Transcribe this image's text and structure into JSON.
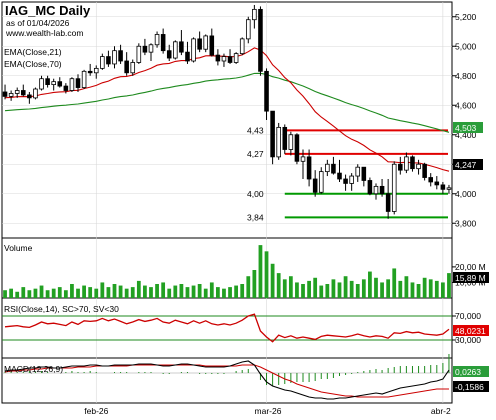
{
  "chart_data": {
    "type": "candlestick",
    "title": "IAG_MC Daily",
    "subtitle": "as of 01/04/2026",
    "source": "www.wealth-lab.com",
    "x_labels": [
      "feb-26",
      "mar-26",
      "abr-2"
    ],
    "price_panel": {
      "ylim": [
        3700,
        5300
      ],
      "yticks": [
        "5,200",
        "5,000",
        "4,800",
        "4,600",
        "4,400",
        "4,200",
        "4,000",
        "3,800"
      ],
      "indicators": [
        "EMA(Close,21)",
        "EMA(Close,70)"
      ],
      "ema21_last": "4,247",
      "ema70_last": "4,503",
      "levels": [
        {
          "label": "4,43",
          "value": 4430,
          "color": "#e00000"
        },
        {
          "label": "4,27",
          "value": 4270,
          "color": "#e00000"
        },
        {
          "label": "4,00",
          "value": 4000,
          "color": "#009900"
        },
        {
          "label": "3,84",
          "value": 3840,
          "color": "#009900"
        }
      ],
      "candles": [
        [
          4690,
          4740,
          4640,
          4660
        ],
        [
          4660,
          4700,
          4630,
          4680
        ],
        [
          4680,
          4720,
          4650,
          4700
        ],
        [
          4700,
          4740,
          4660,
          4670
        ],
        [
          4670,
          4690,
          4610,
          4650
        ],
        [
          4650,
          4720,
          4640,
          4710
        ],
        [
          4710,
          4800,
          4700,
          4780
        ],
        [
          4780,
          4800,
          4720,
          4740
        ],
        [
          4740,
          4780,
          4700,
          4760
        ],
        [
          4760,
          4790,
          4720,
          4730
        ],
        [
          4730,
          4750,
          4680,
          4700
        ],
        [
          4700,
          4790,
          4690,
          4780
        ],
        [
          4780,
          4810,
          4690,
          4720
        ],
        [
          4720,
          4840,
          4710,
          4830
        ],
        [
          4830,
          4880,
          4800,
          4820
        ],
        [
          4820,
          4870,
          4780,
          4850
        ],
        [
          4850,
          4950,
          4840,
          4930
        ],
        [
          4930,
          4970,
          4860,
          4880
        ],
        [
          4880,
          5000,
          4850,
          4970
        ],
        [
          4970,
          5010,
          4880,
          4900
        ],
        [
          4900,
          4960,
          4800,
          4820
        ],
        [
          4820,
          4910,
          4800,
          4890
        ],
        [
          4890,
          5020,
          4880,
          5000
        ],
        [
          5000,
          5050,
          4940,
          4960
        ],
        [
          4960,
          5020,
          4900,
          5010
        ],
        [
          5010,
          5100,
          4990,
          5080
        ],
        [
          5080,
          5120,
          4950,
          4970
        ],
        [
          4970,
          5010,
          4900,
          4920
        ],
        [
          4920,
          5040,
          4910,
          5030
        ],
        [
          5030,
          5110,
          4940,
          4960
        ],
        [
          4960,
          5030,
          4880,
          4900
        ],
        [
          4900,
          5060,
          4890,
          5050
        ],
        [
          5050,
          5100,
          4960,
          4980
        ],
        [
          4980,
          5080,
          4960,
          5070
        ],
        [
          5070,
          5120,
          4930,
          4940
        ],
        [
          4940,
          4980,
          4870,
          4900
        ],
        [
          4900,
          4950,
          4860,
          4930
        ],
        [
          4930,
          4980,
          4880,
          4890
        ],
        [
          4890,
          4960,
          4880,
          4950
        ],
        [
          4950,
          5060,
          4940,
          5050
        ],
        [
          5050,
          5200,
          5020,
          5180
        ],
        [
          5180,
          5280,
          5120,
          5250
        ],
        [
          5250,
          5270,
          4800,
          4830
        ],
        [
          4830,
          4850,
          4500,
          4560
        ],
        [
          4560,
          4560,
          4200,
          4250
        ],
        [
          4250,
          4480,
          4230,
          4450
        ],
        [
          4450,
          4470,
          4270,
          4300
        ],
        [
          4300,
          4420,
          4260,
          4400
        ],
        [
          4400,
          4410,
          4200,
          4220
        ],
        [
          4220,
          4300,
          4100,
          4250
        ],
        [
          4250,
          4300,
          4050,
          4100
        ],
        [
          4100,
          4160,
          3980,
          4010
        ],
        [
          4010,
          4180,
          4000,
          4150
        ],
        [
          4150,
          4230,
          4120,
          4200
        ],
        [
          4200,
          4250,
          4130,
          4140
        ],
        [
          4140,
          4230,
          4080,
          4100
        ],
        [
          4100,
          4130,
          4020,
          4070
        ],
        [
          4070,
          4140,
          4020,
          4120
        ],
        [
          4120,
          4200,
          4080,
          4180
        ],
        [
          4180,
          4180,
          4050,
          4090
        ],
        [
          4090,
          4110,
          3990,
          4000
        ],
        [
          4000,
          4070,
          3960,
          4050
        ],
        [
          4050,
          4100,
          3980,
          4000
        ],
        [
          4000,
          4100,
          3830,
          3880
        ],
        [
          3880,
          4220,
          3860,
          4200
        ],
        [
          4200,
          4250,
          4130,
          4160
        ],
        [
          4160,
          4280,
          4140,
          4250
        ],
        [
          4250,
          4260,
          4150,
          4170
        ],
        [
          4170,
          4230,
          4130,
          4200
        ],
        [
          4200,
          4210,
          4090,
          4110
        ],
        [
          4110,
          4140,
          4050,
          4080
        ],
        [
          4080,
          4120,
          4030,
          4060
        ],
        [
          4060,
          4080,
          4000,
          4030
        ],
        [
          4030,
          4060,
          4000,
          4040
        ]
      ]
    },
    "volume_panel": {
      "label": "Volume",
      "yticks": [
        "20,00 M",
        "10,00 M"
      ],
      "last": "15,89 M",
      "values": [
        5,
        6,
        4,
        7,
        5,
        6,
        8,
        5,
        6,
        7,
        5,
        9,
        6,
        8,
        7,
        6,
        10,
        7,
        9,
        8,
        6,
        7,
        11,
        8,
        7,
        9,
        10,
        6,
        8,
        9,
        7,
        8,
        9,
        6,
        10,
        7,
        6,
        7,
        8,
        9,
        14,
        18,
        34,
        30,
        22,
        16,
        12,
        14,
        10,
        9,
        11,
        13,
        8,
        9,
        12,
        10,
        14,
        11,
        9,
        12,
        17,
        13,
        10,
        12,
        19,
        11,
        14,
        10,
        9,
        13,
        12,
        11,
        10,
        16
      ]
    },
    "rsi_panel": {
      "label": "RSI(Close,14), SC>70, SV<30",
      "yticks": [
        "70,000",
        "30,000"
      ],
      "last": "48,0231",
      "ylim": [
        0,
        100
      ],
      "values": [
        52,
        53,
        54,
        52,
        51,
        55,
        60,
        57,
        58,
        56,
        54,
        60,
        56,
        62,
        61,
        62,
        66,
        62,
        65,
        61,
        57,
        60,
        64,
        61,
        63,
        66,
        60,
        58,
        63,
        60,
        57,
        62,
        58,
        62,
        57,
        55,
        57,
        55,
        58,
        63,
        70,
        73,
        45,
        35,
        27,
        38,
        34,
        37,
        33,
        35,
        33,
        31,
        36,
        38,
        37,
        36,
        35,
        37,
        40,
        37,
        35,
        37,
        36,
        33,
        42,
        41,
        44,
        42,
        43,
        40,
        39,
        38,
        40,
        48
      ]
    },
    "macd_panel": {
      "label": "MACD(12,26,9)",
      "last_macd": "0,0263",
      "last_signal": "-0,1586",
      "values_macd": [
        0.02,
        0.03,
        0.03,
        0.04,
        0.05,
        0.05,
        0.06,
        0.06,
        0.05,
        0.05,
        0.06,
        0.07,
        0.07,
        0.07,
        0.08,
        0.08,
        0.07,
        0.07,
        0.08,
        0.08,
        0.08,
        0.08,
        0.09,
        0.09,
        0.09,
        0.08,
        0.07,
        0.07,
        0.08,
        0.09,
        0.09,
        0.08,
        0.07,
        0.06,
        0.06,
        0.06,
        0.06,
        0.07,
        0.09,
        0.11,
        0.12,
        0.08,
        -0.01,
        -0.09,
        -0.13,
        -0.15,
        -0.17,
        -0.18,
        -0.2,
        -0.22,
        -0.24,
        -0.25,
        -0.25,
        -0.26,
        -0.26,
        -0.25,
        -0.25,
        -0.24,
        -0.23,
        -0.22,
        -0.21,
        -0.2,
        -0.21,
        -0.19,
        -0.17,
        -0.15,
        -0.14,
        -0.13,
        -0.12,
        -0.11,
        -0.09,
        -0.08,
        -0.06,
        0.03
      ],
      "values_signal": [
        0.01,
        0.02,
        0.02,
        0.03,
        0.03,
        0.04,
        0.04,
        0.05,
        0.05,
        0.05,
        0.05,
        0.05,
        0.06,
        0.06,
        0.06,
        0.07,
        0.07,
        0.07,
        0.07,
        0.07,
        0.07,
        0.08,
        0.08,
        0.08,
        0.08,
        0.08,
        0.08,
        0.08,
        0.08,
        0.08,
        0.08,
        0.08,
        0.08,
        0.07,
        0.07,
        0.07,
        0.07,
        0.07,
        0.07,
        0.08,
        0.08,
        0.08,
        0.06,
        0.03,
        0.0,
        -0.03,
        -0.06,
        -0.08,
        -0.11,
        -0.13,
        -0.15,
        -0.17,
        -0.19,
        -0.2,
        -0.21,
        -0.22,
        -0.23,
        -0.23,
        -0.24,
        -0.24,
        -0.24,
        -0.24,
        -0.24,
        -0.24,
        -0.23,
        -0.22,
        -0.21,
        -0.2,
        -0.19,
        -0.18,
        -0.17,
        -0.16,
        -0.16,
        -0.16
      ]
    }
  }
}
